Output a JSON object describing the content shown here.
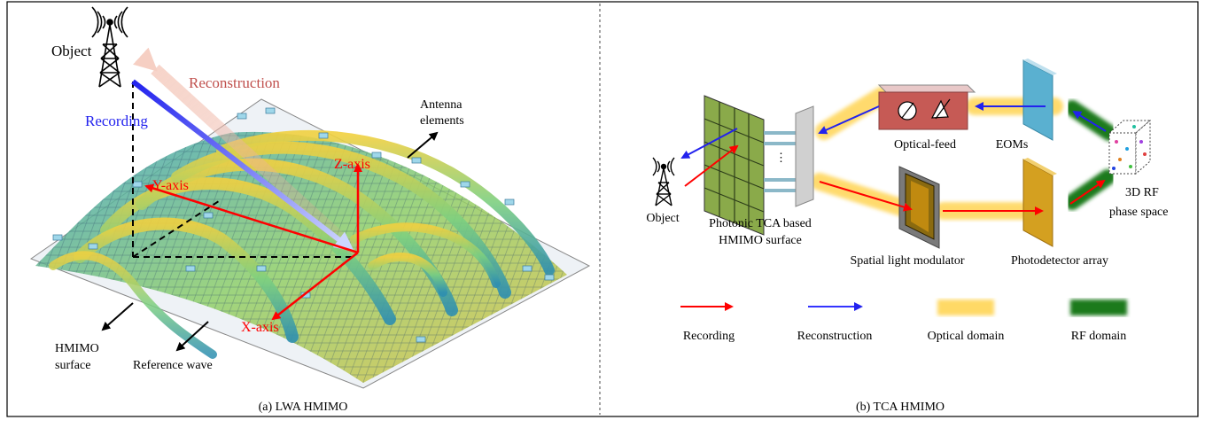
{
  "panels": {
    "left": {
      "caption": "(a) LWA HMIMO",
      "labels": {
        "object": "Object",
        "reconstruction": "Reconstruction",
        "recording": "Recording",
        "antenna_line1": "Antenna",
        "antenna_line2": "elements",
        "z_axis": "Z-axis",
        "y_axis": "Y-axis",
        "x_axis": "X-axis",
        "hmimo_line1": "HMIMO",
        "hmimo_line2": "surface",
        "reference_wave": "Reference wave"
      }
    },
    "right": {
      "caption": "(b) TCA HMIMO",
      "labels": {
        "optical_feed": "Optical-feed",
        "eoms": "EOMs",
        "rf_line1": "3D RF",
        "rf_line2": "phase space",
        "object": "Object",
        "photonic_line1": "Photonic TCA based",
        "photonic_line2": "HMIMO surface",
        "slm": "Spatial light modulator",
        "photodetector": "Photodetector array",
        "dots": "⋮"
      },
      "legend": [
        {
          "label": "Recording",
          "kind": "arrow",
          "color": "#ff0000"
        },
        {
          "label": "Reconstruction",
          "kind": "arrow",
          "color": "#3333ff"
        },
        {
          "label": "Optical domain",
          "kind": "band",
          "color": "#ffd966"
        },
        {
          "label": "RF domain",
          "kind": "band",
          "color": "#1a7a1a"
        }
      ]
    }
  },
  "colors": {
    "recording": "#ff0000",
    "reconstruction_blue": "#2222ee",
    "reconstruction_text": "#c0504d",
    "optical": "#ffd966",
    "rf": "#1a7a1a"
  }
}
